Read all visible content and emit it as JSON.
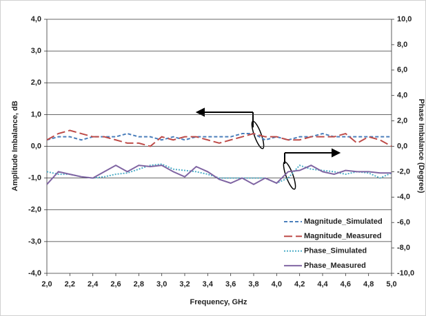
{
  "chart_data": {
    "type": "line",
    "x_label": "Frequency, GHz",
    "y_label": "Amplitude Imbalance, dB",
    "y2_label": "Phase Imbalance (Degree)",
    "x": [
      2.0,
      2.1,
      2.2,
      2.3,
      2.4,
      2.5,
      2.6,
      2.7,
      2.8,
      2.9,
      3.0,
      3.1,
      3.2,
      3.3,
      3.4,
      3.5,
      3.6,
      3.7,
      3.8,
      3.9,
      4.0,
      4.1,
      4.2,
      4.3,
      4.4,
      4.5,
      4.6,
      4.7,
      4.8,
      4.9,
      5.0
    ],
    "series": [
      {
        "name": "Magnitude_Simulated",
        "color": "#4a7ebb",
        "style": "dashed",
        "axis": "y",
        "values": [
          0.2,
          0.3,
          0.3,
          0.2,
          0.3,
          0.3,
          0.3,
          0.4,
          0.3,
          0.3,
          0.2,
          0.3,
          0.2,
          0.3,
          0.3,
          0.3,
          0.3,
          0.4,
          0.4,
          0.2,
          0.3,
          0.2,
          0.3,
          0.3,
          0.4,
          0.3,
          0.3,
          0.3,
          0.3,
          0.3,
          0.3
        ]
      },
      {
        "name": "Magnitude_Measured",
        "color": "#be4b48",
        "style": "longdash",
        "axis": "y",
        "values": [
          0.2,
          0.4,
          0.5,
          0.4,
          0.3,
          0.3,
          0.2,
          0.1,
          0.1,
          0.0,
          0.3,
          0.2,
          0.3,
          0.3,
          0.2,
          0.1,
          0.2,
          0.3,
          0.4,
          0.3,
          0.3,
          0.2,
          0.2,
          0.3,
          0.3,
          0.3,
          0.4,
          0.1,
          0.3,
          0.2,
          0.0
        ]
      },
      {
        "name": "Phase_Simulated",
        "color": "#4bacc6",
        "style": "dotted",
        "axis": "y2",
        "values": [
          -2.0,
          -2.2,
          -2.2,
          -2.4,
          -2.5,
          -2.4,
          -2.2,
          -2.1,
          -1.8,
          -1.5,
          -1.4,
          -1.8,
          -1.9,
          -2.0,
          -2.2,
          -2.5,
          -2.5,
          -2.5,
          -2.5,
          -2.5,
          -2.9,
          -2.5,
          -1.5,
          -1.8,
          -1.9,
          -2.0,
          -2.2,
          -2.0,
          -2.1,
          -2.5,
          -2.1
        ]
      },
      {
        "name": "Phase_Measured",
        "color": "#7f64a2",
        "style": "solid",
        "axis": "y2",
        "values": [
          -3.0,
          -2.0,
          -2.2,
          -2.4,
          -2.5,
          -2.0,
          -1.5,
          -2.0,
          -1.5,
          -1.6,
          -1.5,
          -2.0,
          -2.4,
          -1.6,
          -2.0,
          -2.6,
          -2.9,
          -2.5,
          -3.0,
          -2.5,
          -2.9,
          -2.0,
          -1.9,
          -1.5,
          -2.0,
          -2.2,
          -1.9,
          -2.0,
          -2.0,
          -2.1,
          -2.1
        ]
      }
    ],
    "xlim": [
      2.0,
      5.0
    ],
    "xticks": [
      {
        "value": 2.0,
        "label": "2,0"
      },
      {
        "value": 2.2,
        "label": "2,2"
      },
      {
        "value": 2.4,
        "label": "2,4"
      },
      {
        "value": 2.6,
        "label": "2,6"
      },
      {
        "value": 2.8,
        "label": "2,8"
      },
      {
        "value": 3.0,
        "label": "3,0"
      },
      {
        "value": 3.2,
        "label": "3,2"
      },
      {
        "value": 3.4,
        "label": "3,4"
      },
      {
        "value": 3.6,
        "label": "3,6"
      },
      {
        "value": 3.8,
        "label": "3,8"
      },
      {
        "value": 4.0,
        "label": "4,0"
      },
      {
        "value": 4.2,
        "label": "4,2"
      },
      {
        "value": 4.4,
        "label": "4,4"
      },
      {
        "value": 4.6,
        "label": "4,6"
      },
      {
        "value": 4.8,
        "label": "4,8"
      },
      {
        "value": 5.0,
        "label": "5,0"
      }
    ],
    "ylim": [
      -4,
      4
    ],
    "yticks": [
      {
        "value": -4,
        "label": "-4,0"
      },
      {
        "value": -3,
        "label": "-3,0"
      },
      {
        "value": -2,
        "label": "-2,0"
      },
      {
        "value": -1,
        "label": "-1,0"
      },
      {
        "value": 0,
        "label": "0,0"
      },
      {
        "value": 1,
        "label": "1,0"
      },
      {
        "value": 2,
        "label": "2,0"
      },
      {
        "value": 3,
        "label": "3,0"
      },
      {
        "value": 4,
        "label": "4,0"
      }
    ],
    "y2lim": [
      -10,
      10
    ],
    "y2ticks": [
      {
        "value": -10,
        "label": "-10,0"
      },
      {
        "value": -8,
        "label": "-8,0"
      },
      {
        "value": -6,
        "label": "-6,0"
      },
      {
        "value": -4,
        "label": "-4,0"
      },
      {
        "value": -2,
        "label": "-2,0"
      },
      {
        "value": 0,
        "label": "0,0"
      },
      {
        "value": 2,
        "label": "2,0"
      },
      {
        "value": 4,
        "label": "4,0"
      },
      {
        "value": 6,
        "label": "6,0"
      },
      {
        "value": 8,
        "label": "8,0"
      },
      {
        "value": 10,
        "label": "10,0"
      }
    ],
    "grid": true
  }
}
